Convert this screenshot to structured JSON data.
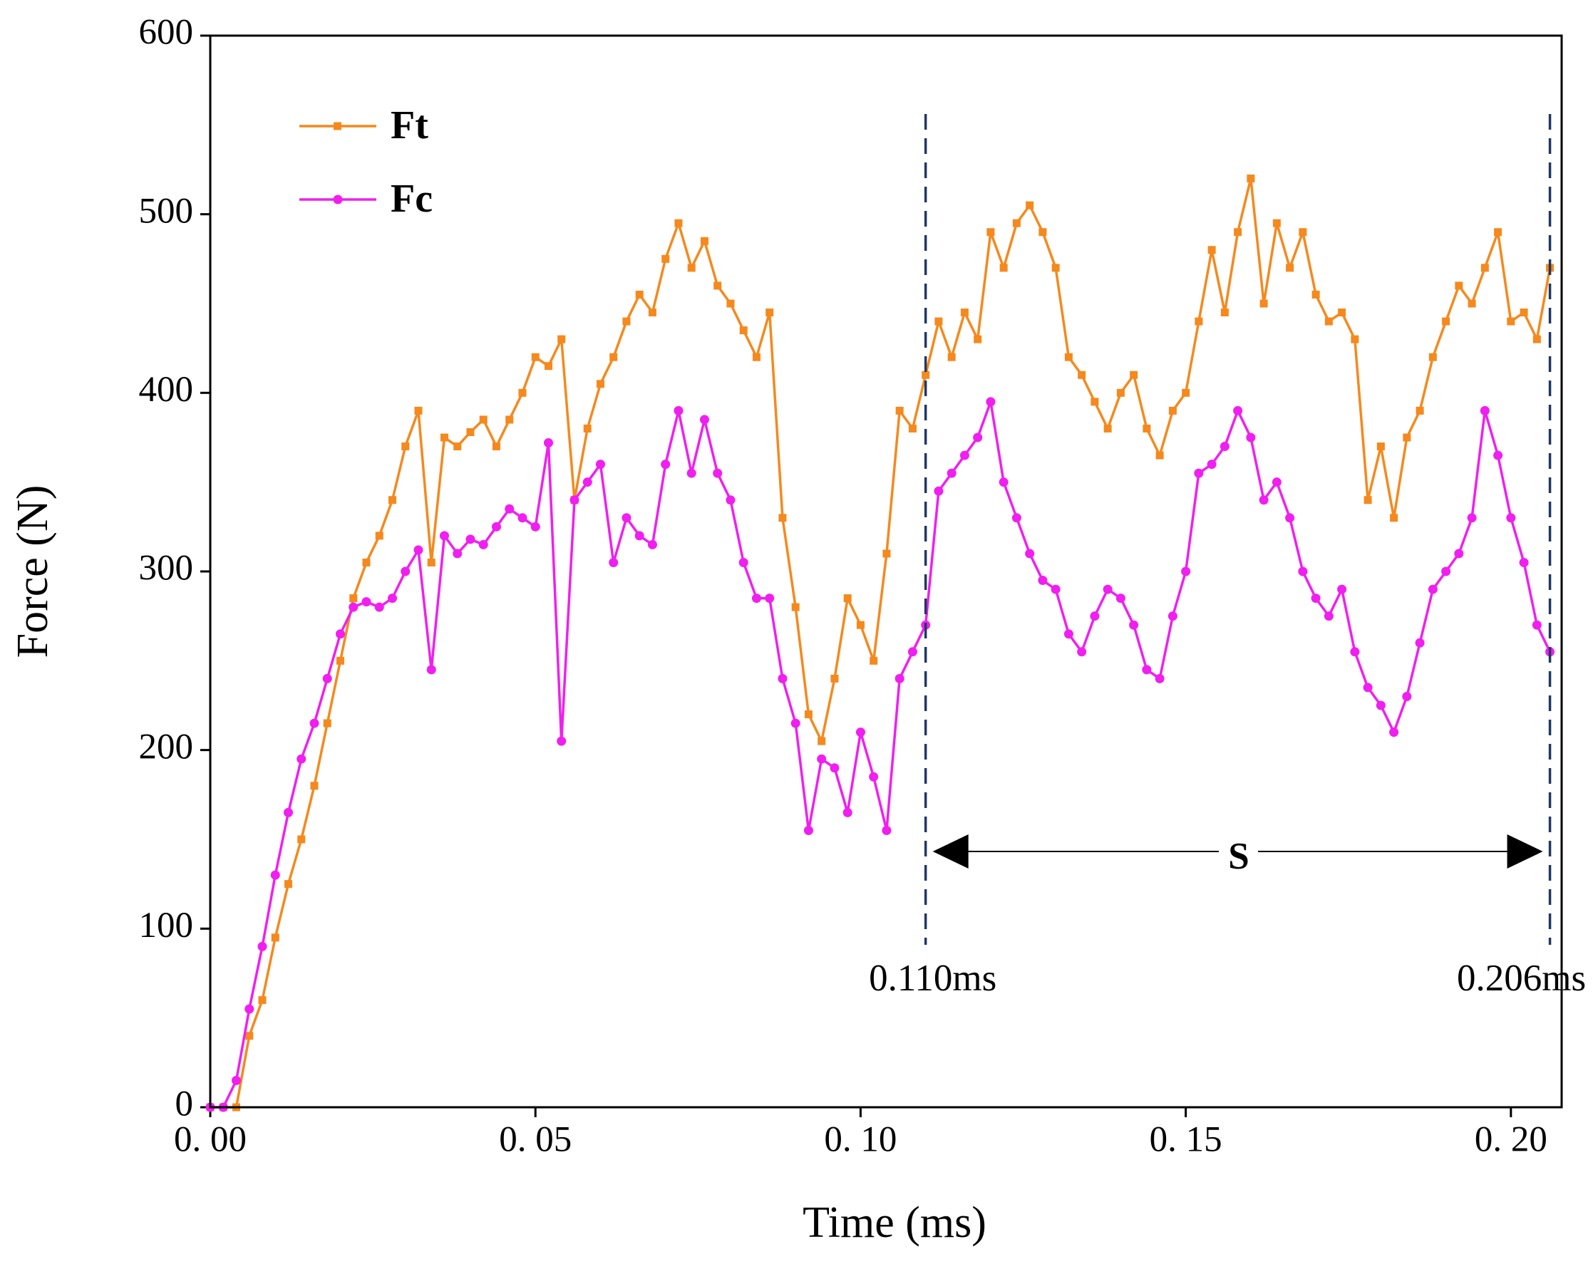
{
  "chart_data": {
    "type": "line",
    "xlabel": "Time (ms)",
    "ylabel": "Force (N)",
    "xlim": [
      0,
      0.2078
    ],
    "ylim": [
      0,
      600
    ],
    "xticks": [
      {
        "value": 0,
        "label": "0. 00"
      },
      {
        "value": 0.05,
        "label": "0. 05"
      },
      {
        "value": 0.1,
        "label": "0. 10"
      },
      {
        "value": 0.15,
        "label": "0. 15"
      },
      {
        "value": 0.2,
        "label": "0. 20"
      }
    ],
    "yticks": [
      0,
      100,
      200,
      300,
      400,
      500,
      600
    ],
    "legend": "upper left",
    "x": [
      0,
      0.002,
      0.004,
      0.006,
      0.008,
      0.01,
      0.012,
      0.014,
      0.016,
      0.018,
      0.02,
      0.022,
      0.024,
      0.026,
      0.028,
      0.03,
      0.032,
      0.034,
      0.036,
      0.038,
      0.04,
      0.042,
      0.044,
      0.046,
      0.048,
      0.05,
      0.052,
      0.054,
      0.056,
      0.058,
      0.06,
      0.062,
      0.064,
      0.066,
      0.068,
      0.07,
      0.072,
      0.074,
      0.076,
      0.078,
      0.08,
      0.082,
      0.084,
      0.086,
      0.088,
      0.09,
      0.092,
      0.094,
      0.096,
      0.098,
      0.1,
      0.102,
      0.104,
      0.106,
      0.108,
      0.11,
      0.112,
      0.114,
      0.116,
      0.118,
      0.12,
      0.122,
      0.124,
      0.126,
      0.128,
      0.13,
      0.132,
      0.134,
      0.136,
      0.138,
      0.14,
      0.142,
      0.144,
      0.146,
      0.148,
      0.15,
      0.152,
      0.154,
      0.156,
      0.158,
      0.16,
      0.162,
      0.164,
      0.166,
      0.168,
      0.17,
      0.172,
      0.174,
      0.176,
      0.178,
      0.18,
      0.182,
      0.184,
      0.186,
      0.188,
      0.19,
      0.192,
      0.194,
      0.196,
      0.198,
      0.2,
      0.202,
      0.204,
      0.206
    ],
    "series": [
      {
        "name": "Ft",
        "color": "#f5891d",
        "marker": "square",
        "values": [
          0,
          0,
          0,
          40,
          60,
          95,
          125,
          150,
          180,
          215,
          250,
          285,
          305,
          320,
          340,
          370,
          390,
          305,
          375,
          370,
          378,
          385,
          370,
          385,
          400,
          420,
          415,
          430,
          340,
          380,
          405,
          420,
          440,
          455,
          445,
          475,
          495,
          470,
          485,
          460,
          450,
          435,
          420,
          445,
          330,
          280,
          220,
          205,
          240,
          285,
          270,
          250,
          310,
          390,
          380,
          410,
          440,
          420,
          445,
          430,
          490,
          470,
          495,
          505,
          490,
          470,
          420,
          410,
          395,
          380,
          400,
          410,
          380,
          365,
          390,
          400,
          440,
          480,
          445,
          490,
          520,
          450,
          495,
          470,
          490,
          455,
          440,
          445,
          430,
          340,
          370,
          330,
          375,
          390,
          420,
          440,
          460,
          450,
          470,
          490,
          440,
          445,
          430,
          470
        ]
      },
      {
        "name": "Fc",
        "color": "#f01ff0",
        "marker": "circle",
        "values": [
          0,
          0,
          15,
          55,
          90,
          130,
          165,
          195,
          215,
          240,
          265,
          280,
          283,
          280,
          285,
          300,
          312,
          245,
          320,
          310,
          318,
          315,
          325,
          335,
          330,
          325,
          372,
          205,
          340,
          350,
          360,
          305,
          330,
          320,
          315,
          360,
          390,
          355,
          385,
          355,
          340,
          305,
          285,
          285,
          240,
          215,
          155,
          195,
          190,
          165,
          210,
          185,
          155,
          240,
          255,
          270,
          345,
          355,
          365,
          375,
          395,
          350,
          330,
          310,
          295,
          290,
          265,
          255,
          275,
          290,
          285,
          270,
          245,
          240,
          275,
          300,
          355,
          360,
          370,
          390,
          375,
          340,
          350,
          330,
          300,
          285,
          275,
          290,
          255,
          235,
          225,
          210,
          230,
          260,
          290,
          300,
          310,
          330,
          390,
          365,
          330,
          305,
          270,
          255
        ]
      }
    ],
    "annotations": [
      {
        "text": "0.110ms",
        "x": 0.11
      },
      {
        "text": "0.206ms",
        "x": 0.206
      }
    ],
    "span_label": "S"
  }
}
